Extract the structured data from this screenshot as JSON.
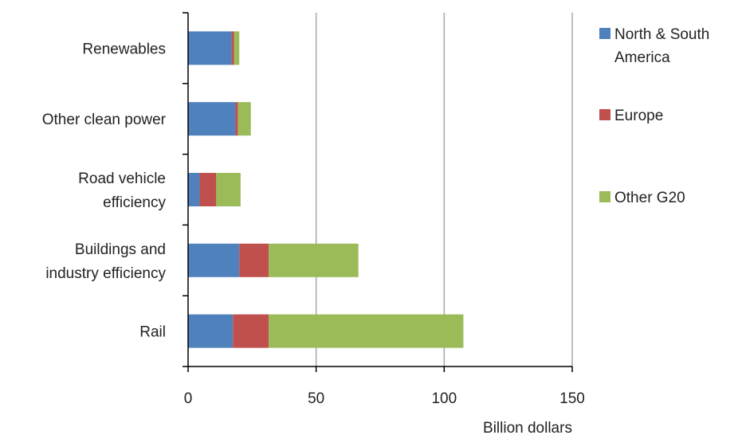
{
  "chart_data": {
    "type": "bar",
    "orientation": "horizontal",
    "stacked": true,
    "categories": [
      "Renewables",
      "Other clean power",
      "Road vehicle efficiency",
      "Buildings and industry efficiency",
      "Rail"
    ],
    "category_label_lines": [
      [
        "Renewables"
      ],
      [
        "Other clean power"
      ],
      [
        "Road vehicle",
        "efficiency"
      ],
      [
        "Buildings and",
        "industry efficiency"
      ],
      [
        "Rail"
      ]
    ],
    "series": [
      {
        "name": "North & South America",
        "legend_lines": [
          "North & South",
          "America"
        ],
        "color": "#4F81BD",
        "values": [
          17,
          18.5,
          4.5,
          20,
          17.5
        ]
      },
      {
        "name": "Europe",
        "legend_lines": [
          "Europe"
        ],
        "color": "#C0504D",
        "values": [
          1,
          1,
          6.5,
          11.5,
          14
        ]
      },
      {
        "name": "Other G20",
        "legend_lines": [
          "Other G20"
        ],
        "color": "#9BBB59",
        "values": [
          2,
          5,
          9.5,
          35,
          76
        ]
      }
    ],
    "xlabel": "Billion dollars",
    "ylabel": "",
    "xlim": [
      0,
      150
    ],
    "xticks": [
      0,
      50,
      100,
      150
    ],
    "grid": "vertical",
    "grid_color": "#A6A6A6",
    "legend_position": "right"
  }
}
